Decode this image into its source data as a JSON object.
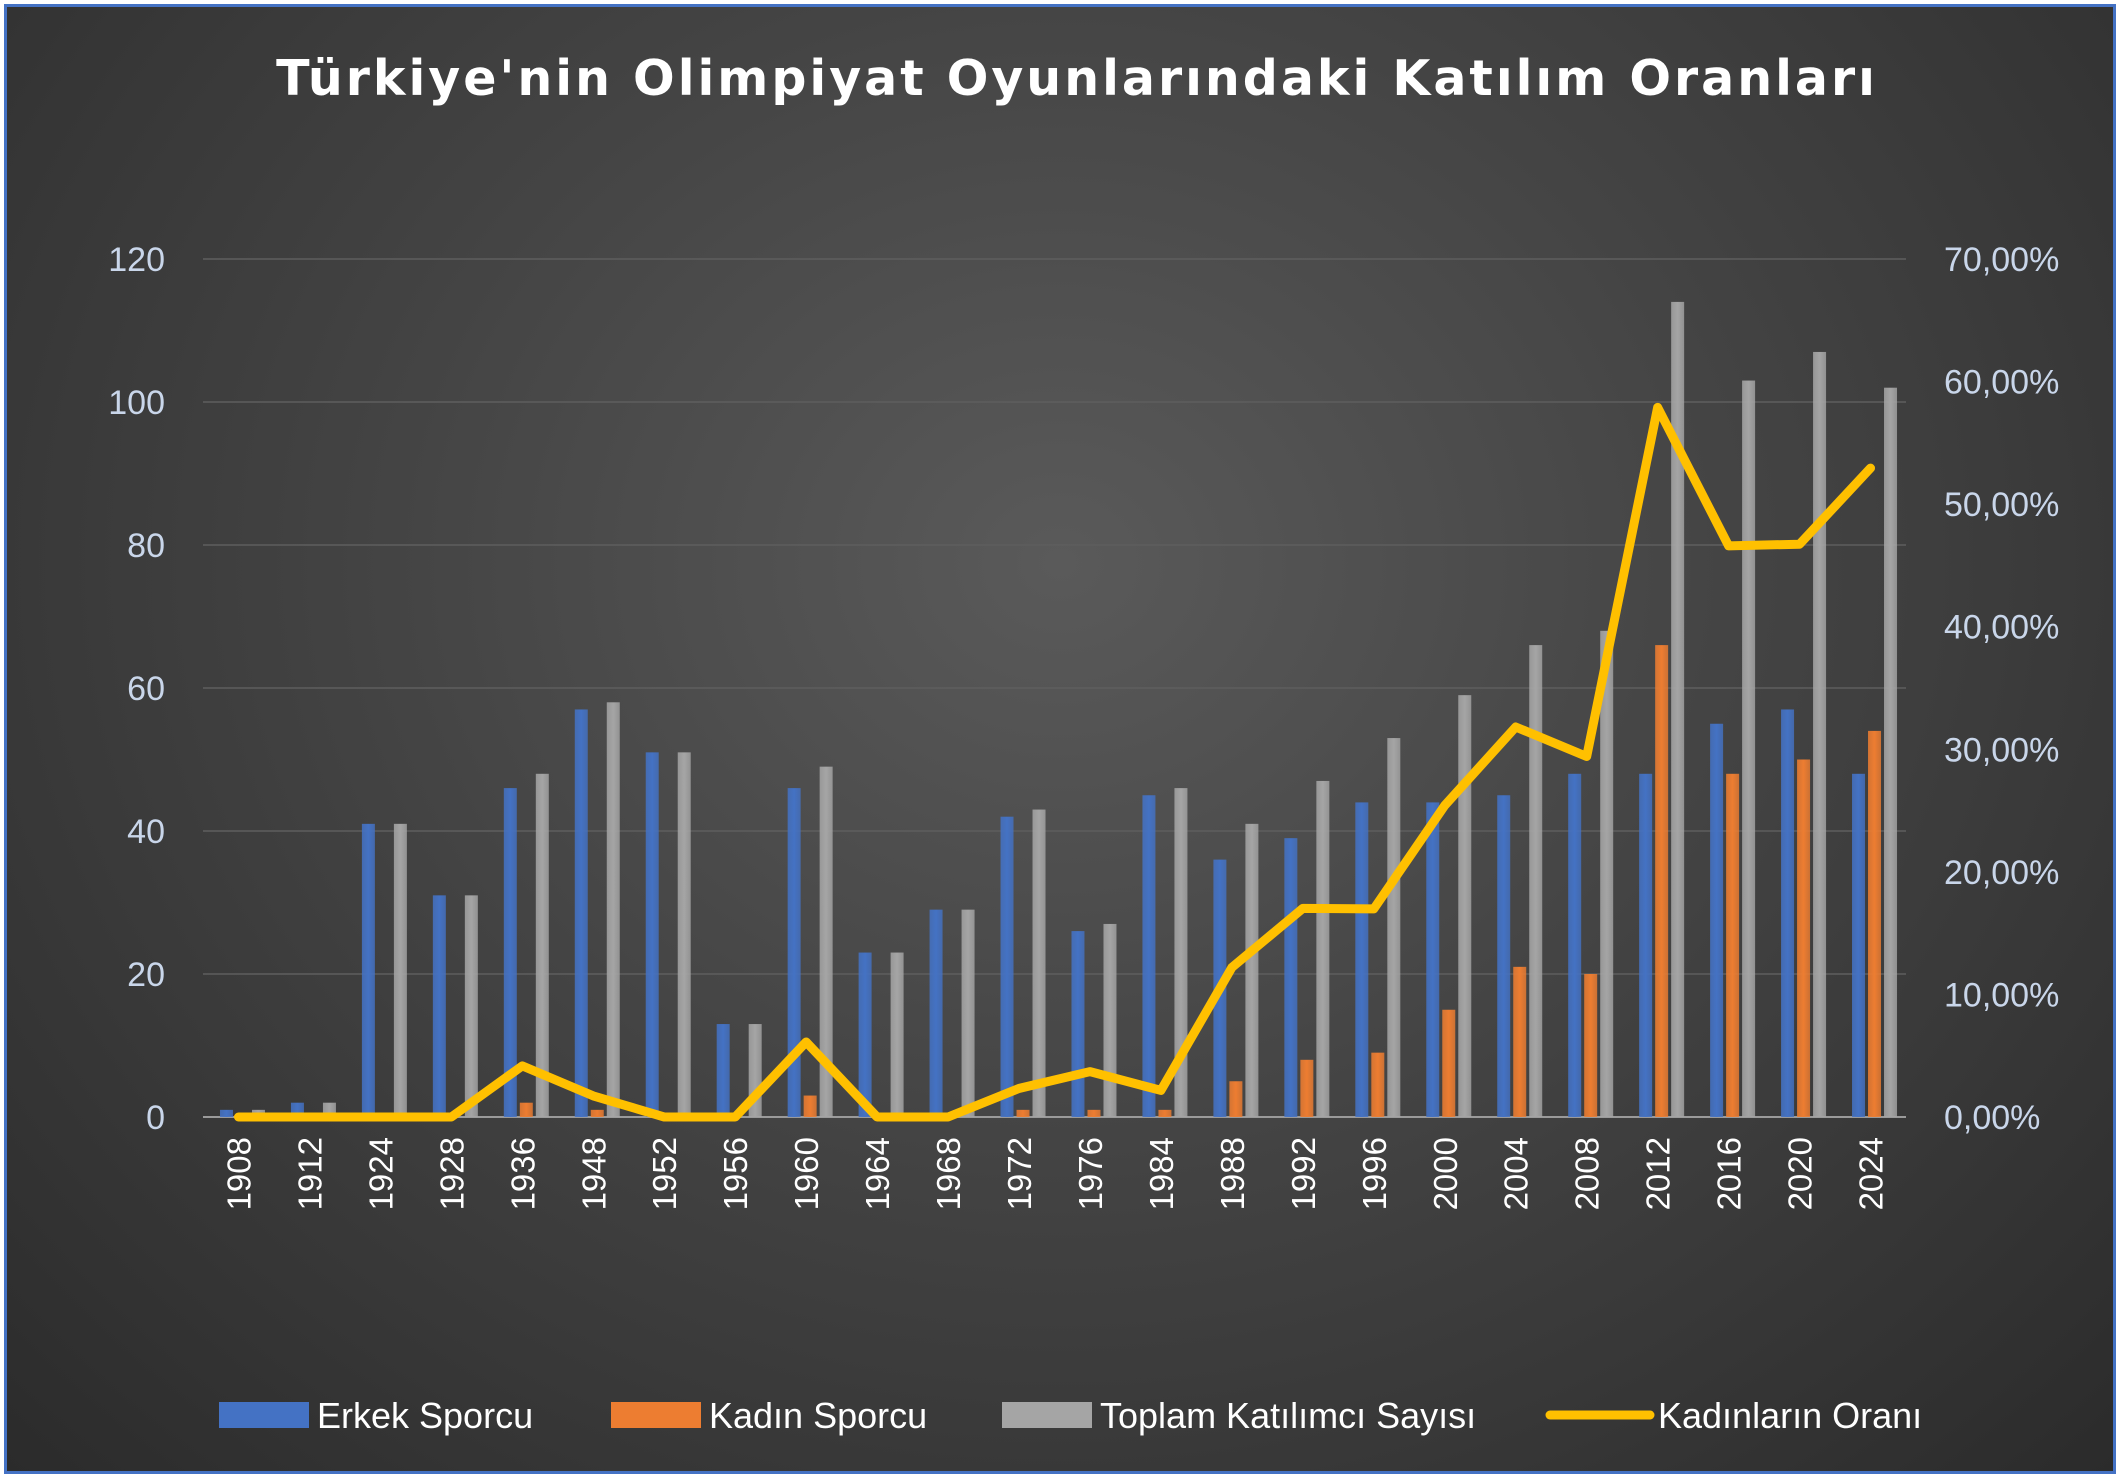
{
  "chart_data": {
    "type": "bar",
    "title": "Türkiye'nin Olimpiyat Oyunlarındaki Katılım Oranları",
    "categories": [
      "1908",
      "1912",
      "1924",
      "1928",
      "1936",
      "1948",
      "1952",
      "1956",
      "1960",
      "1964",
      "1968",
      "1972",
      "1976",
      "1984",
      "1988",
      "1992",
      "1996",
      "2000",
      "2004",
      "2008",
      "2012",
      "2016",
      "2020",
      "2024"
    ],
    "series": [
      {
        "name": "Erkek Sporcu",
        "type": "bar",
        "axis": "left",
        "color": "#4472c4",
        "values": [
          1,
          2,
          41,
          31,
          46,
          57,
          51,
          13,
          46,
          23,
          29,
          42,
          26,
          45,
          36,
          39,
          44,
          44,
          45,
          48,
          48,
          55,
          57,
          48
        ]
      },
      {
        "name": "Kadın Sporcu",
        "type": "bar",
        "axis": "left",
        "color": "#ed7d31",
        "values": [
          0,
          0,
          0,
          0,
          2,
          1,
          0,
          0,
          3,
          0,
          0,
          1,
          1,
          1,
          5,
          8,
          9,
          15,
          21,
          20,
          66,
          48,
          50,
          54
        ]
      },
      {
        "name": "Toplam Katılımcı Sayısı",
        "type": "bar",
        "axis": "left",
        "color": "#a5a5a5",
        "values": [
          1,
          2,
          41,
          31,
          48,
          58,
          51,
          13,
          49,
          23,
          29,
          43,
          27,
          46,
          41,
          47,
          53,
          59,
          66,
          68,
          114,
          103,
          107,
          102
        ]
      },
      {
        "name": "Kadınların Oranı",
        "type": "line",
        "axis": "right",
        "color": "#ffc000",
        "values": [
          0,
          0,
          0,
          0,
          4.17,
          1.72,
          0,
          0,
          6.12,
          0,
          0,
          2.33,
          3.7,
          2.17,
          12.2,
          17.02,
          16.98,
          25.42,
          31.82,
          29.41,
          57.89,
          46.6,
          46.73,
          52.94
        ]
      }
    ],
    "y_left": {
      "min": 0,
      "max": 120,
      "step": 20,
      "ticks": [
        "0",
        "20",
        "40",
        "60",
        "80",
        "100",
        "120"
      ]
    },
    "y_right": {
      "min": 0,
      "max": 70,
      "step": 10,
      "ticks": [
        "0,00%",
        "10,00%",
        "20,00%",
        "30,00%",
        "40,00%",
        "50,00%",
        "60,00%",
        "70,00%"
      ]
    },
    "grid": true,
    "legend_position": "bottom"
  }
}
